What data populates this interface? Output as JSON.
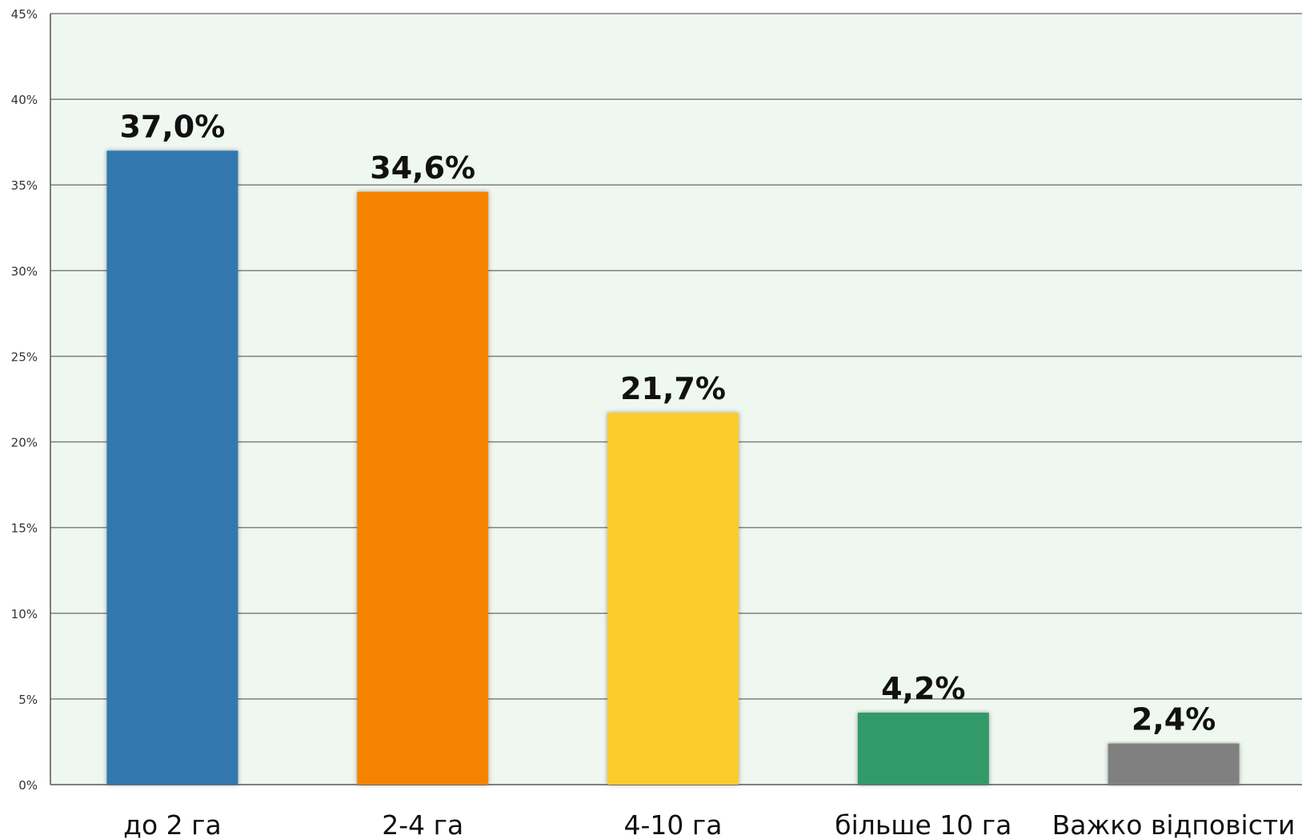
{
  "chart_data": {
    "type": "bar",
    "categories": [
      "до 2 га",
      "2-4 га",
      "4-10 га",
      "більше 10 га",
      "Важко відповісти"
    ],
    "values": [
      37.0,
      34.6,
      21.7,
      4.2,
      2.4
    ],
    "data_labels": [
      "37,0%",
      "34,6%",
      "21,7%",
      "4,2%",
      "2,4%"
    ],
    "colors": [
      "#3378ae",
      "#f58302",
      "#fecb2d",
      "#339a68",
      "#808080"
    ],
    "yticks": [
      "0%",
      "5%",
      "10%",
      "15%",
      "20%",
      "25%",
      "30%",
      "35%",
      "40%",
      "45%"
    ],
    "ylim": [
      0,
      45
    ],
    "grid": true,
    "background": "#eef7f0",
    "gridline_color": "#7f7f7f"
  }
}
